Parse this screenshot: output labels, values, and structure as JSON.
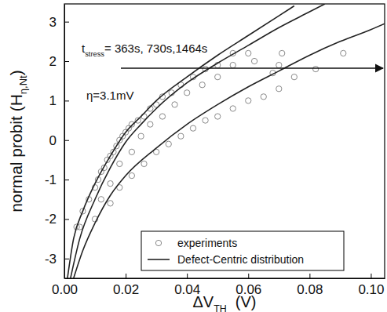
{
  "chart_data": {
    "type": "line",
    "xlabel": {
      "text": "ΔV",
      "sub": "TH",
      "after": "  (V)"
    },
    "ylabel": {
      "text": "normal probit (H",
      "sub": "η,Nt",
      "after": ")"
    },
    "annotations": [
      {
        "text": "t",
        "sub": "stress",
        "after": "= 363s, 730s,1464s"
      },
      {
        "text": "η=3.1mV"
      }
    ],
    "xlim": [
      0,
      0.1045
    ],
    "ylim": [
      -3.5,
      3.45
    ],
    "xticks": [
      {
        "value": 0,
        "label": "0.00"
      },
      {
        "value": 0.02,
        "label": "0.02"
      },
      {
        "value": 0.04,
        "label": "0.04"
      },
      {
        "value": 0.06,
        "label": "0.06"
      },
      {
        "value": 0.08,
        "label": "0.08"
      },
      {
        "value": 0.1,
        "label": "0.10"
      }
    ],
    "yticks": [
      -3,
      -2,
      -1,
      0,
      1,
      2,
      3
    ],
    "legend": "lower right",
    "series": [
      {
        "name": "experiments",
        "type": "scatter",
        "marker": "circle",
        "color": "#8a8a8a",
        "x": [
          0.004,
          0.006,
          0.008,
          0.01,
          0.011,
          0.012,
          0.013,
          0.014,
          0.015,
          0.016,
          0.017,
          0.018,
          0.019,
          0.02,
          0.021,
          0.022,
          0.024,
          0.026,
          0.028,
          0.03,
          0.032,
          0.035,
          0.038,
          0.042,
          0.046,
          0.05,
          0.055,
          0.06,
          0.071,
          0.012,
          0.015,
          0.018,
          0.022,
          0.025,
          0.028,
          0.032,
          0.036,
          0.04,
          0.045,
          0.05,
          0.055,
          0.062,
          0.068,
          0.07,
          0.005,
          0.01,
          0.015,
          0.018,
          0.022,
          0.026,
          0.03,
          0.034,
          0.038,
          0.042,
          0.046,
          0.05,
          0.055,
          0.06,
          0.065,
          0.07,
          0.075,
          0.082,
          0.091
        ],
        "values": [
          -2.2,
          -1.8,
          -1.5,
          -1.2,
          -1.0,
          -0.8,
          -0.7,
          -0.5,
          -0.4,
          -0.3,
          -0.15,
          0.0,
          0.1,
          0.2,
          0.3,
          0.4,
          0.5,
          0.6,
          0.8,
          0.9,
          1.1,
          1.2,
          1.4,
          1.6,
          1.8,
          1.9,
          2.2,
          2.2,
          2.2,
          -1.5,
          -1.1,
          -0.6,
          -0.3,
          0.1,
          0.4,
          0.6,
          0.9,
          1.2,
          1.4,
          1.6,
          1.9,
          2.0,
          1.7,
          1.9,
          -2.2,
          -2.0,
          -1.6,
          -1.2,
          -0.9,
          -0.6,
          -0.3,
          -0.1,
          0.1,
          0.3,
          0.5,
          0.6,
          0.8,
          1.0,
          1.1,
          1.3,
          1.6,
          1.8,
          2.2
        ]
      },
      {
        "name": "Defect-Centric distribution",
        "type": "line",
        "line_style": "solid",
        "color": "#222222",
        "lines": [
          {
            "x": [
              0.001,
              0.003,
              0.006,
              0.01,
              0.015,
              0.02,
              0.025,
              0.03,
              0.04,
              0.05,
              0.06,
              0.07,
              0.075
            ],
            "values": [
              -3.5,
              -2.5,
              -1.8,
              -1.1,
              -0.4,
              0.2,
              0.6,
              1.0,
              1.6,
              2.15,
              2.65,
              3.15,
              3.4
            ]
          },
          {
            "x": [
              0.002,
              0.005,
              0.01,
              0.015,
              0.02,
              0.025,
              0.03,
              0.04,
              0.05,
              0.06,
              0.07,
              0.08,
              0.085
            ],
            "values": [
              -3.5,
              -2.5,
              -1.5,
              -0.7,
              -0.05,
              0.4,
              0.8,
              1.45,
              1.95,
              2.4,
              2.85,
              3.25,
              3.45
            ]
          },
          {
            "x": [
              0.003,
              0.006,
              0.01,
              0.015,
              0.02,
              0.03,
              0.04,
              0.05,
              0.06,
              0.07,
              0.08,
              0.09,
              0.1,
              0.1045
            ],
            "values": [
              -3.5,
              -2.8,
              -2.1,
              -1.4,
              -0.9,
              -0.2,
              0.4,
              0.9,
              1.35,
              1.75,
              2.15,
              2.5,
              2.8,
              2.95
            ]
          }
        ]
      }
    ]
  }
}
